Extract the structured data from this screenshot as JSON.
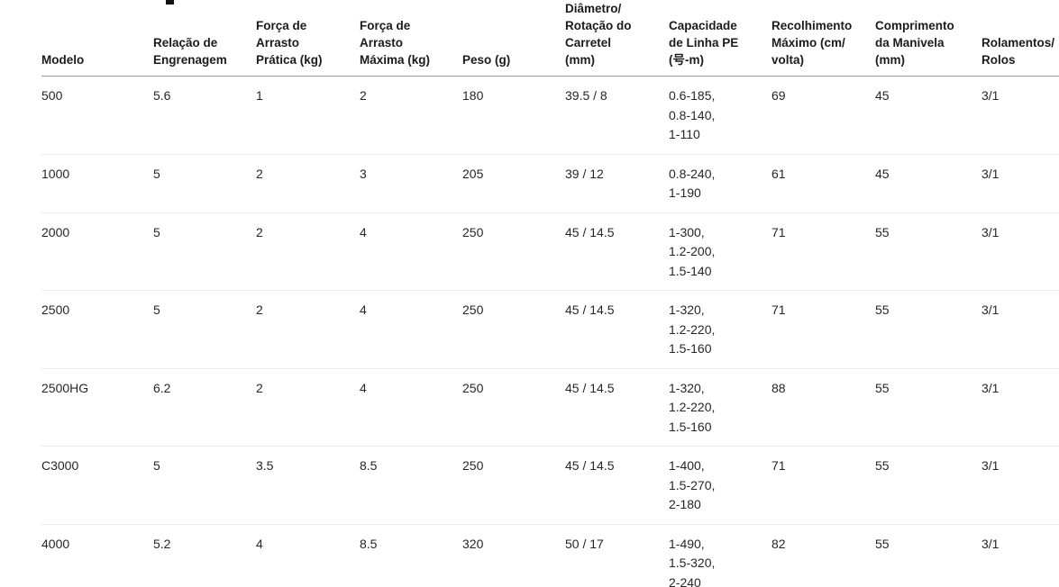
{
  "page": {
    "background": "#ffffff"
  },
  "colors": {
    "header_border": "#979797",
    "row_border": "#ebebeb",
    "text": "#262626",
    "header_text": "#1b1b1b"
  },
  "table": {
    "columns": [
      {
        "id": "modelo",
        "label": "Modelo"
      },
      {
        "id": "relacao-engrenagem",
        "label": "Relação de\nEngrenagem"
      },
      {
        "id": "forca-arrasto-pratica",
        "label": "Força de\nArrasto\nPrática (kg)"
      },
      {
        "id": "forca-arrasto-maxima",
        "label": "Força de\nArrasto\nMáxima (kg)"
      },
      {
        "id": "peso",
        "label": "Peso (g)"
      },
      {
        "id": "diametro-rotacao-carretel",
        "label": "Diâmetro/\nRotação do\nCarretel\n(mm)"
      },
      {
        "id": "capacidade-linha-pe",
        "label": "Capacidade\nde Linha PE\n(号-m)"
      },
      {
        "id": "recolhimento-maximo",
        "label": "Recolhimento\nMáximo (cm/\nvolta)"
      },
      {
        "id": "comprimento-manivela",
        "label": "Comprimento\nda Manivela\n(mm)"
      },
      {
        "id": "rolamentos-rolos",
        "label": "Rolamentos/\nRolos"
      }
    ],
    "rows": [
      {
        "model": "500",
        "gear_ratio": "5.6",
        "practical_drag_kg": "1",
        "max_drag_kg": "2",
        "weight_g": "180",
        "spool_diameter_rotation_mm": "39.5 / 8",
        "pe_line_capacity": [
          "0.6-185,",
          "0.8-140,",
          "1-110"
        ],
        "max_retrieve_cm_per_turn": "69",
        "handle_length_mm": "45",
        "bearings_rollers": "3/1"
      },
      {
        "model": "1000",
        "gear_ratio": "5",
        "practical_drag_kg": "2",
        "max_drag_kg": "3",
        "weight_g": "205",
        "spool_diameter_rotation_mm": "39 / 12",
        "pe_line_capacity": [
          "0.8-240,",
          "1-190"
        ],
        "max_retrieve_cm_per_turn": "61",
        "handle_length_mm": "45",
        "bearings_rollers": "3/1"
      },
      {
        "model": "2000",
        "gear_ratio": "5",
        "practical_drag_kg": "2",
        "max_drag_kg": "4",
        "weight_g": "250",
        "spool_diameter_rotation_mm": "45 / 14.5",
        "pe_line_capacity": [
          "1-300,",
          "1.2-200,",
          "1.5-140"
        ],
        "max_retrieve_cm_per_turn": "71",
        "handle_length_mm": "55",
        "bearings_rollers": "3/1"
      },
      {
        "model": "2500",
        "gear_ratio": "5",
        "practical_drag_kg": "2",
        "max_drag_kg": "4",
        "weight_g": "250",
        "spool_diameter_rotation_mm": "45 / 14.5",
        "pe_line_capacity": [
          "1-320,",
          "1.2-220,",
          "1.5-160"
        ],
        "max_retrieve_cm_per_turn": "71",
        "handle_length_mm": "55",
        "bearings_rollers": "3/1"
      },
      {
        "model": "2500HG",
        "gear_ratio": "6.2",
        "practical_drag_kg": "2",
        "max_drag_kg": "4",
        "weight_g": "250",
        "spool_diameter_rotation_mm": "45 / 14.5",
        "pe_line_capacity": [
          "1-320,",
          "1.2-220,",
          "1.5-160"
        ],
        "max_retrieve_cm_per_turn": "88",
        "handle_length_mm": "55",
        "bearings_rollers": "3/1"
      },
      {
        "model": "C3000",
        "gear_ratio": "5",
        "practical_drag_kg": "3.5",
        "max_drag_kg": "8.5",
        "weight_g": "250",
        "spool_diameter_rotation_mm": "45 / 14.5",
        "pe_line_capacity": [
          "1-400,",
          "1.5-270,",
          "2-180"
        ],
        "max_retrieve_cm_per_turn": "71",
        "handle_length_mm": "55",
        "bearings_rollers": "3/1"
      },
      {
        "model": "4000",
        "gear_ratio": "5.2",
        "practical_drag_kg": "4",
        "max_drag_kg": "8.5",
        "weight_g": "320",
        "spool_diameter_rotation_mm": "50 / 17",
        "pe_line_capacity": [
          "1-490,",
          "1.5-320,",
          "2-240"
        ],
        "max_retrieve_cm_per_turn": "82",
        "handle_length_mm": "55",
        "bearings_rollers": "3/1"
      }
    ]
  }
}
